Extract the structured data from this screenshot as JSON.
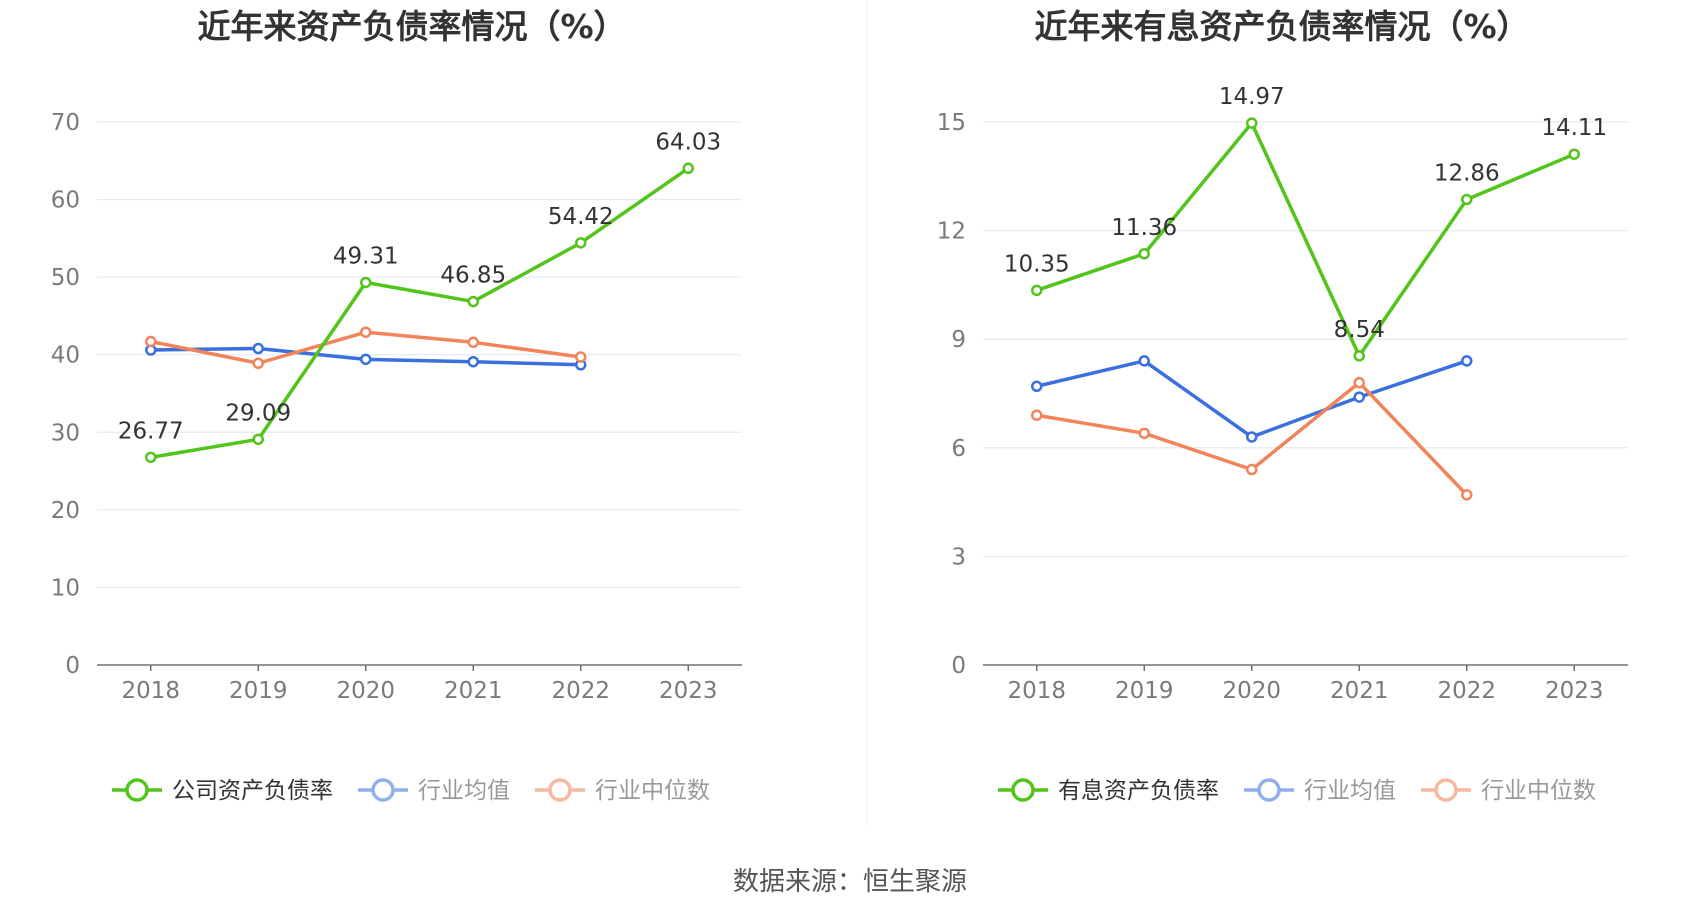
{
  "source_label": "数据来源：恒生聚源",
  "colors": {
    "company": "#52c41a",
    "avg": "#3a6fe0",
    "median": "#f2845c",
    "legend_avg": "#8fb0ec",
    "legend_median": "#f7b8a0"
  },
  "chart_data": [
    {
      "type": "line",
      "title": "近年来资产负债率情况（%）",
      "categories": [
        "2018",
        "2019",
        "2020",
        "2021",
        "2022",
        "2023"
      ],
      "ylim": [
        0,
        70
      ],
      "yticks": [
        0,
        10,
        20,
        30,
        40,
        50,
        60,
        70
      ],
      "grid": true,
      "legend_position": "bottom",
      "series": [
        {
          "name": "公司资产负债率",
          "values": [
            26.77,
            29.09,
            49.31,
            46.85,
            54.42,
            64.03
          ],
          "labels": true
        },
        {
          "name": "行业均值",
          "values": [
            40.6,
            40.8,
            39.4,
            39.1,
            38.7,
            null
          ]
        },
        {
          "name": "行业中位数",
          "values": [
            41.7,
            38.9,
            42.9,
            41.6,
            39.7,
            null
          ]
        }
      ]
    },
    {
      "type": "line",
      "title": "近年来有息资产负债率情况（%）",
      "categories": [
        "2018",
        "2019",
        "2020",
        "2021",
        "2022",
        "2023"
      ],
      "ylim": [
        0,
        15
      ],
      "yticks": [
        0,
        3,
        6,
        9,
        12,
        15
      ],
      "grid": true,
      "legend_position": "bottom",
      "series": [
        {
          "name": "有息资产负债率",
          "values": [
            10.35,
            11.36,
            14.97,
            8.54,
            12.86,
            14.11
          ],
          "labels": true
        },
        {
          "name": "行业均值",
          "values": [
            7.7,
            8.4,
            6.3,
            7.4,
            8.4,
            null
          ]
        },
        {
          "name": "行业中位数",
          "values": [
            6.9,
            6.4,
            5.4,
            7.8,
            4.7,
            null
          ]
        }
      ]
    }
  ]
}
